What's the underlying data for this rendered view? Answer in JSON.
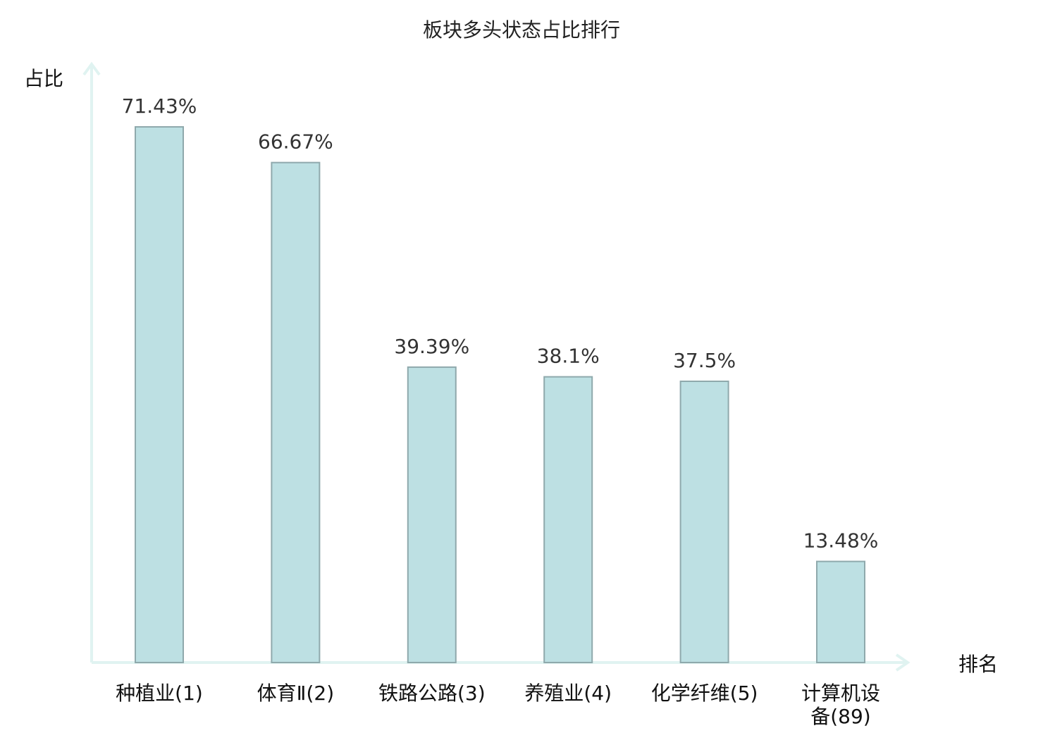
{
  "chart_data": {
    "type": "bar",
    "title": "板块多头状态占比排行",
    "xlabel": "排名",
    "ylabel": "占比",
    "ylim": [
      0,
      80
    ],
    "grid": false,
    "categories": [
      [
        "种植业",
        "(1)"
      ],
      [
        "体育Ⅱ",
        "(2)"
      ],
      [
        "铁路公路",
        "(3)"
      ],
      [
        "养殖业",
        "(4)"
      ],
      [
        "化学纤维",
        "(5)"
      ],
      [
        "计算机设",
        "备(89)"
      ]
    ],
    "values": [
      71.43,
      66.67,
      39.39,
      38.1,
      37.5,
      13.48
    ],
    "value_labels": [
      "71.43%",
      "66.67%",
      "39.39%",
      "38.1%",
      "37.5%",
      "13.48%"
    ],
    "highlight_index": 5,
    "colors": {
      "bar_fill": "#bde0e3",
      "bar_stroke": "#8fa9ac",
      "axis": "#e0f3f1",
      "highlight_text": "#e01010",
      "normal_text": "#111111"
    }
  }
}
